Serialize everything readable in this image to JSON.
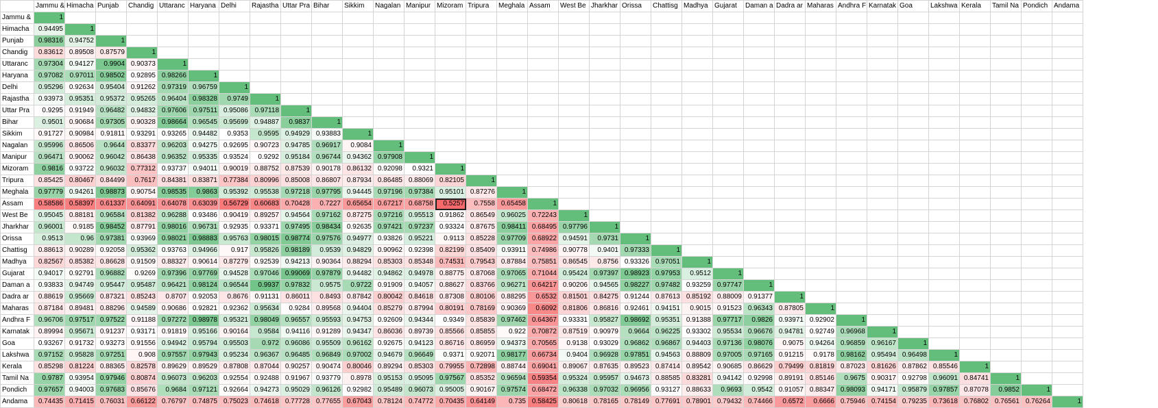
{
  "headers": [
    "Jammu &",
    "Himacha",
    "Punjab",
    "Chandig",
    "Uttaranc",
    "Haryana",
    "Delhi",
    "Rajastha",
    "Uttar Pra",
    "Bihar",
    "Sikkim",
    "Nagalan",
    "Manipur",
    "Mizoram",
    "Tripura",
    "Meghala",
    "Assam",
    "West Be",
    "Jharkhar",
    "Orissa",
    "Chattisg",
    "Madhya",
    "Gujarat",
    "Daman a",
    "Dadra ar",
    "Maharas",
    "Andhra F",
    "Karnatak",
    "Goa",
    "Lakshwa",
    "Kerala",
    "Tamil Na",
    "Pondich",
    "Andama"
  ],
  "row_labels": [
    "Jammu &",
    "Himacha",
    "Punjab",
    "Chandig",
    "Uttaranc",
    "Haryana",
    "Delhi",
    "Rajastha",
    "Uttar Pra",
    "Bihar",
    "Sikkim",
    "Nagalan",
    "Manipur",
    "Mizoram",
    "Tripura",
    "Meghala",
    "Assam",
    "West Be",
    "Jharkhar",
    "Orissa",
    "Chattisg",
    "Madhya",
    "Gujarat",
    "Daman a",
    "Dadra ar",
    "Maharas",
    "Andhra F",
    "Karnatak",
    "Goa",
    "Lakshwa",
    "Kerala",
    "Tamil Na",
    "Pondich",
    "Andama"
  ],
  "selected_cell": {
    "row": 16,
    "col": 13
  },
  "colors": {
    "high": "#63be7b",
    "mid": "#ffffff",
    "low": "#f8696b"
  },
  "rows": [
    [
      "1"
    ],
    [
      "0.94495",
      "1"
    ],
    [
      "0.98316",
      "0.94752",
      "1"
    ],
    [
      "0.83612",
      "0.89508",
      "0.87579",
      "1"
    ],
    [
      "0.97304",
      "0.94127",
      "0.9904",
      "0.90373",
      "1"
    ],
    [
      "0.97082",
      "0.97011",
      "0.98502",
      "0.92895",
      "0.98266",
      "1"
    ],
    [
      "0.95296",
      "0.92634",
      "0.95404",
      "0.91262",
      "0.97319",
      "0.96759",
      "1"
    ],
    [
      "0.93973",
      "0.95351",
      "0.95372",
      "0.95265",
      "0.96404",
      "0.98328",
      "0.9749",
      "1"
    ],
    [
      "0.9295",
      "0.91949",
      "0.96482",
      "0.94832",
      "0.97606",
      "0.97511",
      "0.95086",
      "0.97118",
      "1"
    ],
    [
      "0.9501",
      "0.90684",
      "0.97305",
      "0.90328",
      "0.98664",
      "0.96545",
      "0.95699",
      "0.94887",
      "0.9837",
      "1"
    ],
    [
      "0.91727",
      "0.90984",
      "0.91811",
      "0.93291",
      "0.93265",
      "0.94482",
      "0.9353",
      "0.9595",
      "0.94929",
      "0.93883",
      "1"
    ],
    [
      "0.95996",
      "0.86506",
      "0.9644",
      "0.83377",
      "0.96203",
      "0.94275",
      "0.92695",
      "0.90723",
      "0.94785",
      "0.96917",
      "0.9084",
      "1"
    ],
    [
      "0.96471",
      "0.90062",
      "0.96042",
      "0.86438",
      "0.96352",
      "0.95335",
      "0.93524",
      "0.9292",
      "0.95184",
      "0.96744",
      "0.94362",
      "0.97908",
      "1"
    ],
    [
      "0.9816",
      "0.93722",
      "0.96032",
      "0.77312",
      "0.93737",
      "0.94011",
      "0.90019",
      "0.88752",
      "0.87539",
      "0.90178",
      "0.86132",
      "0.92098",
      "0.9321",
      "1"
    ],
    [
      "0.85425",
      "0.80467",
      "0.84499",
      "0.7617",
      "0.84381",
      "0.83871",
      "0.77384",
      "0.80996",
      "0.85008",
      "0.86807",
      "0.87934",
      "0.86485",
      "0.88069",
      "0.82105",
      "1"
    ],
    [
      "0.97779",
      "0.94261",
      "0.98873",
      "0.90754",
      "0.98535",
      "0.9863",
      "0.95392",
      "0.95538",
      "0.97218",
      "0.97795",
      "0.94445",
      "0.97196",
      "0.97384",
      "0.95101",
      "0.87276",
      "1"
    ],
    [
      "0.58586",
      "0.58397",
      "0.61337",
      "0.64091",
      "0.64078",
      "0.63039",
      "0.56729",
      "0.60683",
      "0.70428",
      "0.7227",
      "0.65654",
      "0.67217",
      "0.68758",
      "0.5257",
      "0.7558",
      "0.65458",
      "1"
    ],
    [
      "0.95045",
      "0.88181",
      "0.96584",
      "0.81382",
      "0.96288",
      "0.93486",
      "0.90419",
      "0.89257",
      "0.94564",
      "0.97162",
      "0.87275",
      "0.97216",
      "0.95513",
      "0.91862",
      "0.86549",
      "0.96025",
      "0.72243",
      "1"
    ],
    [
      "0.96001",
      "0.9185",
      "0.98452",
      "0.87791",
      "0.98016",
      "0.96731",
      "0.92935",
      "0.93371",
      "0.97495",
      "0.98434",
      "0.92635",
      "0.97421",
      "0.97237",
      "0.93324",
      "0.87675",
      "0.98411",
      "0.68495",
      "0.97796",
      "1"
    ],
    [
      "0.9513",
      "0.96",
      "0.97381",
      "0.93969",
      "0.98021",
      "0.98883",
      "0.95763",
      "0.98015",
      "0.98774",
      "0.97576",
      "0.94977",
      "0.93826",
      "0.95221",
      "0.9113",
      "0.85228",
      "0.97709",
      "0.68922",
      "0.94591",
      "0.9731",
      "1"
    ],
    [
      "0.88613",
      "0.90289",
      "0.92058",
      "0.95362",
      "0.93763",
      "0.94966",
      "0.917",
      "0.95826",
      "0.98189",
      "0.9539",
      "0.94829",
      "0.90962",
      "0.92398",
      "0.82199",
      "0.85409",
      "0.93911",
      "0.74986",
      "0.90778",
      "0.9401",
      "0.97333",
      "1"
    ],
    [
      "0.82567",
      "0.85382",
      "0.86628",
      "0.91509",
      "0.88327",
      "0.90614",
      "0.87279",
      "0.92539",
      "0.94213",
      "0.90364",
      "0.88294",
      "0.85303",
      "0.85348",
      "0.74531",
      "0.79543",
      "0.87884",
      "0.75851",
      "0.86545",
      "0.8756",
      "0.93326",
      "0.97051",
      "1"
    ],
    [
      "0.94017",
      "0.92791",
      "0.96882",
      "0.9269",
      "0.97396",
      "0.97769",
      "0.94528",
      "0.97046",
      "0.99069",
      "0.97879",
      "0.94482",
      "0.94862",
      "0.94978",
      "0.88775",
      "0.87068",
      "0.97065",
      "0.71044",
      "0.95424",
      "0.97397",
      "0.98923",
      "0.97953",
      "0.9512",
      "1"
    ],
    [
      "0.93833",
      "0.94749",
      "0.95447",
      "0.95487",
      "0.96421",
      "0.98124",
      "0.96544",
      "0.9937",
      "0.97832",
      "0.9575",
      "0.9722",
      "0.91909",
      "0.94057",
      "0.88627",
      "0.83766",
      "0.96271",
      "0.64217",
      "0.90206",
      "0.94565",
      "0.98227",
      "0.97482",
      "0.93259",
      "0.97747",
      "1"
    ],
    [
      "0.88619",
      "0.95669",
      "0.87321",
      "0.85243",
      "0.8707",
      "0.92053",
      "0.8676",
      "0.91131",
      "0.86011",
      "0.8493",
      "0.87842",
      "0.80042",
      "0.84618",
      "0.87308",
      "0.80106",
      "0.88295",
      "0.6532",
      "0.81501",
      "0.84275",
      "0.91244",
      "0.87613",
      "0.85192",
      "0.88009",
      "0.91377",
      "1"
    ],
    [
      "0.87184",
      "0.89481",
      "0.88296",
      "0.94589",
      "0.90686",
      "0.92821",
      "0.92362",
      "0.95634",
      "0.9284",
      "0.89568",
      "0.94404",
      "0.85279",
      "0.87994",
      "0.80191",
      "0.78169",
      "0.90369",
      "0.6092",
      "0.81806",
      "0.86816",
      "0.92461",
      "0.94151",
      "0.9015",
      "0.91523",
      "0.96343",
      "0.87805",
      "1"
    ],
    [
      "0.96706",
      "0.97517",
      "0.97522",
      "0.91188",
      "0.97272",
      "0.98978",
      "0.95321",
      "0.98049",
      "0.96557",
      "0.95593",
      "0.94753",
      "0.92609",
      "0.94344",
      "0.9349",
      "0.85839",
      "0.97462",
      "0.64367",
      "0.93331",
      "0.95827",
      "0.98692",
      "0.95351",
      "0.91388",
      "0.97717",
      "0.9826",
      "0.93971",
      "0.92902",
      "1"
    ],
    [
      "0.89994",
      "0.95671",
      "0.91237",
      "0.93171",
      "0.91819",
      "0.95166",
      "0.90164",
      "0.9584",
      "0.94116",
      "0.91289",
      "0.94347",
      "0.86036",
      "0.89739",
      "0.85566",
      "0.85855",
      "0.922",
      "0.70872",
      "0.87519",
      "0.90979",
      "0.9664",
      "0.96225",
      "0.93302",
      "0.95534",
      "0.96676",
      "0.94781",
      "0.92749",
      "0.96968",
      "1"
    ],
    [
      "0.93267",
      "0.91732",
      "0.93273",
      "0.91556",
      "0.94942",
      "0.95794",
      "0.95503",
      "0.972",
      "0.96086",
      "0.95509",
      "0.96162",
      "0.92675",
      "0.94123",
      "0.86716",
      "0.86959",
      "0.94373",
      "0.70565",
      "0.9138",
      "0.93029",
      "0.96862",
      "0.96867",
      "0.94403",
      "0.97136",
      "0.98076",
      "0.9075",
      "0.94264",
      "0.96859",
      "0.96167",
      "1"
    ],
    [
      "0.97152",
      "0.95828",
      "0.97251",
      "0.908",
      "0.97557",
      "0.97943",
      "0.95234",
      "0.96367",
      "0.96485",
      "0.96849",
      "0.97002",
      "0.94679",
      "0.96649",
      "0.9371",
      "0.92071",
      "0.98177",
      "0.66734",
      "0.9404",
      "0.96928",
      "0.97851",
      "0.94563",
      "0.88809",
      "0.97005",
      "0.97165",
      "0.91215",
      "0.9178",
      "0.98162",
      "0.95494",
      "0.96498",
      "1"
    ],
    [
      "0.85298",
      "0.81224",
      "0.88365",
      "0.82578",
      "0.89629",
      "0.89529",
      "0.87808",
      "0.87044",
      "0.90257",
      "0.90474",
      "0.80046",
      "0.89294",
      "0.85303",
      "0.79955",
      "0.72898",
      "0.88744",
      "0.69041",
      "0.89067",
      "0.87635",
      "0.89523",
      "0.87414",
      "0.89542",
      "0.90685",
      "0.86629",
      "0.79499",
      "0.81819",
      "0.87023",
      "0.81626",
      "0.87862",
      "0.85546",
      "1"
    ],
    [
      "0.9787",
      "0.93954",
      "0.97946",
      "0.80874",
      "0.96073",
      "0.96203",
      "0.92554",
      "0.92488",
      "0.91967",
      "0.93779",
      "0.8978",
      "0.95153",
      "0.95095",
      "0.97567",
      "0.85352",
      "0.96594",
      "0.59354",
      "0.95324",
      "0.95957",
      "0.94673",
      "0.88585",
      "0.83281",
      "0.94142",
      "0.92998",
      "0.89191",
      "0.85146",
      "0.9675",
      "0.90317",
      "0.92798",
      "0.96091",
      "0.84741",
      "1"
    ],
    [
      "0.97657",
      "0.94003",
      "0.97683",
      "0.85676",
      "0.9684",
      "0.97121",
      "0.92664",
      "0.94273",
      "0.95029",
      "0.96126",
      "0.92982",
      "0.95489",
      "0.96073",
      "0.95005",
      "0.90167",
      "0.97574",
      "0.68472",
      "0.96338",
      "0.97032",
      "0.96956",
      "0.93127",
      "0.88633",
      "0.9693",
      "0.9542",
      "0.91057",
      "0.88347",
      "0.98093",
      "0.94171",
      "0.95879",
      "0.97857",
      "0.87078",
      "0.9852",
      "1"
    ],
    [
      "0.74435",
      "0.71415",
      "0.76031",
      "0.66122",
      "0.76797",
      "0.74875",
      "0.75023",
      "0.74618",
      "0.77728",
      "0.77655",
      "0.67043",
      "0.78124",
      "0.74772",
      "0.70435",
      "0.64149",
      "0.735",
      "0.58425",
      "0.80618",
      "0.78165",
      "0.78149",
      "0.77691",
      "0.78901",
      "0.79432",
      "0.74466",
      "0.6572",
      "0.6666",
      "0.75946",
      "0.74154",
      "0.79235",
      "0.73618",
      "0.76802",
      "0.76561",
      "0.76264",
      "1"
    ]
  ]
}
